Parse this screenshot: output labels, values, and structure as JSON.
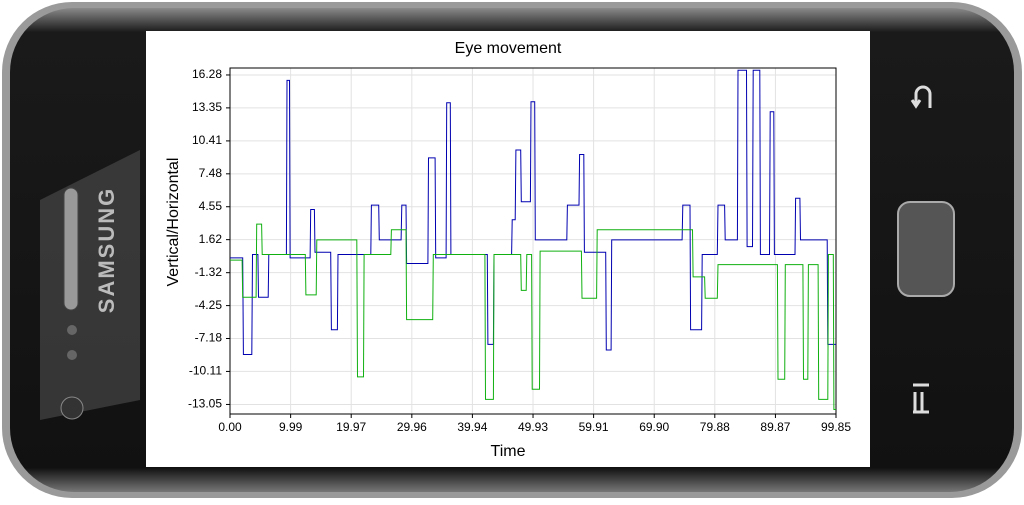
{
  "device": {
    "brand": "SAMSUNG"
  },
  "chart_data": {
    "type": "line",
    "title": "Eye movement",
    "x_label": "Time",
    "y_label": "Vertical/Horizontal",
    "xlim": [
      0,
      99.85
    ],
    "ylim": [
      -13.9,
      16.9
    ],
    "grid": true,
    "xticks": [
      {
        "value": 0,
        "label": "0.00"
      },
      9.99,
      19.97,
      29.96,
      39.94,
      49.93,
      59.91,
      {
        "value": 69.9,
        "label": "69.90"
      },
      79.88,
      89.87,
      99.85
    ],
    "yticks": [
      16.28,
      13.35,
      10.41,
      7.48,
      4.55,
      1.62,
      -1.32,
      -4.25,
      -7.18,
      -10.11,
      -13.05
    ],
    "series": [
      {
        "color": "#0000b0",
        "x": [
          0,
          2.1,
          2.2,
          3.6,
          3.7,
          4.6,
          4.7,
          6.3,
          6.4,
          9.3,
          9.4,
          9.8,
          9.9,
          13.2,
          13.3,
          13.9,
          14.0,
          16.6,
          16.7,
          17.7,
          17.8,
          23.2,
          23.3,
          24.5,
          24.6,
          28.2,
          28.3,
          29.0,
          29.1,
          32.6,
          32.7,
          33.8,
          33.9,
          35.6,
          35.7,
          36.3,
          36.4,
          42.4,
          42.5,
          43.4,
          43.5,
          46.4,
          46.5,
          47.0,
          47.1,
          47.9,
          48.0,
          49.5,
          49.6,
          50.2,
          50.3,
          55.5,
          55.6,
          57.5,
          57.6,
          58.3,
          58.4,
          61.9,
          62.0,
          62.8,
          62.9,
          74.5,
          74.6,
          75.8,
          75.9,
          77.7,
          77.8,
          80.3,
          80.4,
          81.5,
          81.6,
          83.6,
          83.7,
          85.1,
          85.2,
          86.1,
          86.2,
          87.3,
          87.4,
          88.9,
          89.0,
          89.6,
          89.7,
          93.1,
          93.2,
          93.9,
          94.0,
          98.4,
          98.5,
          99.85
        ],
        "values": [
          0.0,
          0.0,
          -8.6,
          -8.6,
          0.3,
          0.3,
          -3.5,
          -3.5,
          0.3,
          0.3,
          15.8,
          15.8,
          0.0,
          0.0,
          4.3,
          4.3,
          0.5,
          0.5,
          -6.4,
          -6.4,
          0.3,
          0.3,
          4.7,
          4.7,
          1.6,
          1.6,
          4.7,
          4.7,
          -0.5,
          -0.5,
          8.9,
          8.9,
          0.0,
          0.0,
          13.8,
          13.8,
          0.3,
          0.3,
          -7.7,
          -7.7,
          0.3,
          0.3,
          3.4,
          3.4,
          9.6,
          9.6,
          5.0,
          5.0,
          13.9,
          13.9,
          1.6,
          1.6,
          4.7,
          4.7,
          9.2,
          9.2,
          0.5,
          0.5,
          -8.2,
          -8.2,
          1.6,
          1.6,
          4.7,
          4.7,
          -6.4,
          -6.4,
          0.3,
          0.3,
          4.7,
          4.7,
          1.6,
          1.6,
          16.7,
          16.7,
          1.0,
          1.0,
          16.7,
          16.7,
          0.3,
          0.3,
          13.0,
          13.0,
          0.3,
          0.3,
          5.3,
          5.3,
          1.6,
          1.6,
          -7.7,
          -7.7
        ]
      },
      {
        "color": "#10b010",
        "x": [
          0,
          2.0,
          2.1,
          4.3,
          4.4,
          5.2,
          5.3,
          12.4,
          12.5,
          14.2,
          14.3,
          20.9,
          21.0,
          22.0,
          22.1,
          26.5,
          26.6,
          29.0,
          29.1,
          33.4,
          33.5,
          42.0,
          42.1,
          43.4,
          43.5,
          47.9,
          48.0,
          48.8,
          48.9,
          49.7,
          49.8,
          51.0,
          51.1,
          57.9,
          58.0,
          60.4,
          60.5,
          76.2,
          76.3,
          78.2,
          78.3,
          80.3,
          80.4,
          90.2,
          90.3,
          91.4,
          91.5,
          94.4,
          94.5,
          95.2,
          95.3,
          96.9,
          97.0,
          98.5,
          98.6,
          99.4,
          99.5,
          99.85
        ],
        "values": [
          -0.2,
          -0.2,
          -3.5,
          -3.5,
          3.0,
          3.0,
          0.3,
          0.3,
          -3.3,
          -3.3,
          1.6,
          1.6,
          -10.6,
          -10.6,
          0.3,
          0.3,
          2.5,
          2.5,
          -5.5,
          -5.5,
          0.3,
          0.3,
          -12.6,
          -12.6,
          0.3,
          0.3,
          -2.9,
          -2.9,
          0.3,
          0.3,
          -11.7,
          -11.7,
          0.6,
          0.6,
          -3.6,
          -3.6,
          2.5,
          2.5,
          -1.7,
          -1.7,
          -3.6,
          -3.6,
          -0.6,
          -0.6,
          -10.8,
          -10.8,
          -0.6,
          -0.6,
          -10.8,
          -10.8,
          -0.6,
          -0.6,
          -12.6,
          -12.6,
          0.3,
          0.3,
          -13.5,
          -13.5
        ]
      }
    ]
  }
}
